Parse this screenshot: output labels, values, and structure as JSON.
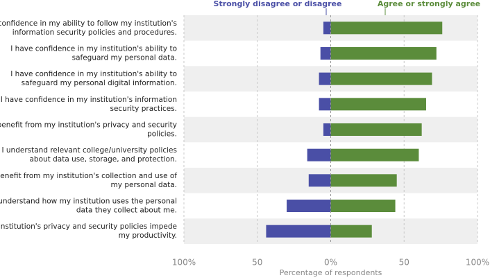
{
  "chart_data": {
    "type": "diverging-bar",
    "categories": [
      [
        "I have confidence in my ability to follow my institution's",
        "information security policies and procedures."
      ],
      [
        "I have confidence in my institution's ability to",
        "safeguard my personal data."
      ],
      [
        "I have confidence in my institution's ability to",
        "safeguard my personal digital information."
      ],
      [
        "I have confidence in my institution's information",
        "security practices."
      ],
      [
        "I benefit from my institution's privacy and security",
        "policies."
      ],
      [
        "I understand relevant college/university policies",
        "about data use, storage, and protection."
      ],
      [
        "I benefit from my institution's collection and use of",
        "my personal data."
      ],
      [
        "I understand how my institution uses the personal",
        "data they collect about me."
      ],
      [
        "My institution's privacy and security policies impede",
        "my productivity."
      ]
    ],
    "series": [
      {
        "name": "Strongly disagree or disagree",
        "color": "#4a4fa6",
        "values": [
          -5,
          -7,
          -8,
          -8,
          -5,
          -16,
          -15,
          -30,
          -44
        ]
      },
      {
        "name": "Agree or strongly agree",
        "color": "#5b8c3b",
        "values": [
          76,
          72,
          69,
          65,
          62,
          60,
          45,
          44,
          28
        ]
      }
    ],
    "xlabel": "Percentage of respondents",
    "xlim": [
      -100,
      100
    ],
    "xticks": [
      {
        "value": -100,
        "label": "100%"
      },
      {
        "value": -50,
        "label": "50"
      },
      {
        "value": 0,
        "label": "0%"
      },
      50,
      {
        "value": 100,
        "label": "100%"
      }
    ],
    "grid": true
  }
}
